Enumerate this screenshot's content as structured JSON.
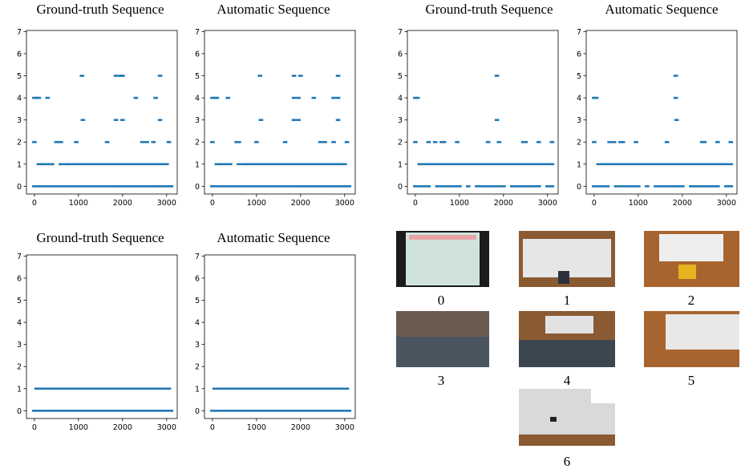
{
  "chart_data": [
    {
      "type": "scatter",
      "title": "Ground-truth Sequence",
      "color": "#1f77b4",
      "xlim": [
        -180,
        3240
      ],
      "ylim": [
        -0.35,
        7.05
      ],
      "xticks": [
        0,
        1000,
        2000,
        3000
      ],
      "yticks": [
        0,
        1,
        2,
        3,
        4,
        5,
        6,
        7
      ],
      "series": [
        {
          "y": 0,
          "x": [
            0,
            100,
            200,
            300,
            400,
            500,
            600,
            700,
            800,
            900,
            1000,
            1100,
            1200,
            1300,
            1400,
            1500,
            1600,
            1700,
            1800,
            1900,
            2000,
            2100,
            2200,
            2300,
            2400,
            2500,
            2600,
            2700,
            2800,
            2900,
            3000,
            3100
          ]
        },
        {
          "y": 1,
          "x": [
            100,
            150,
            200,
            300,
            400,
            600,
            700,
            750,
            800,
            900,
            1000,
            1100,
            1200,
            1300,
            1400,
            1500,
            1600,
            1700,
            1800,
            1900,
            2000,
            2100,
            2200,
            2300,
            2400,
            2500,
            2600,
            2700,
            2800,
            2900,
            3000
          ]
        },
        {
          "y": 2,
          "x": [
            0,
            500,
            550,
            600,
            950,
            1650,
            2450,
            2550,
            2700,
            3050
          ]
        },
        {
          "y": 3,
          "x": [
            1100,
            1850,
            2000,
            2850
          ]
        },
        {
          "y": 4,
          "x": [
            0,
            50,
            100,
            300,
            2300,
            2750
          ]
        },
        {
          "y": 5,
          "x": [
            1080,
            1850,
            1950,
            2000,
            2850
          ]
        }
      ]
    },
    {
      "type": "scatter",
      "title": "Automatic Sequence",
      "color": "#1f77b4",
      "xlim": [
        -180,
        3240
      ],
      "ylim": [
        -0.35,
        7.05
      ],
      "xticks": [
        0,
        1000,
        2000,
        3000
      ],
      "yticks": [
        0,
        1,
        2,
        3,
        4,
        5,
        6,
        7
      ],
      "series": [
        {
          "y": 0,
          "x": [
            0,
            100,
            200,
            300,
            400,
            500,
            600,
            700,
            800,
            900,
            1000,
            1100,
            1200,
            1300,
            1400,
            1500,
            1600,
            1700,
            1800,
            1900,
            2000,
            2100,
            2200,
            2300,
            2400,
            2500,
            2600,
            2700,
            2800,
            2900,
            3000,
            3100
          ]
        },
        {
          "y": 1,
          "x": [
            100,
            150,
            200,
            300,
            400,
            600,
            700,
            750,
            800,
            900,
            1000,
            1100,
            1200,
            1300,
            1400,
            1500,
            1600,
            1700,
            1800,
            1900,
            2000,
            2100,
            2200,
            2300,
            2400,
            2500,
            2600,
            2700,
            2800,
            2900,
            3000
          ]
        },
        {
          "y": 2,
          "x": [
            0,
            550,
            600,
            1000,
            1650,
            2450,
            2550,
            2750,
            3050
          ]
        },
        {
          "y": 3,
          "x": [
            1100,
            1850,
            1950,
            2850
          ]
        },
        {
          "y": 4,
          "x": [
            0,
            50,
            100,
            350,
            1850,
            1950,
            2300,
            2750,
            2850
          ]
        },
        {
          "y": 5,
          "x": [
            1080,
            1850,
            2000,
            2850
          ]
        }
      ]
    },
    {
      "type": "scatter",
      "title": "Ground-truth Sequence",
      "color": "#1f77b4",
      "xlim": [
        -180,
        3240
      ],
      "ylim": [
        -0.35,
        7.05
      ],
      "xticks": [
        0,
        1000,
        2000,
        3000
      ],
      "yticks": [
        0,
        1,
        2,
        3,
        4,
        5,
        6,
        7
      ],
      "series": [
        {
          "y": 0,
          "x": [
            0,
            100,
            200,
            300,
            500,
            600,
            700,
            800,
            900,
            1000,
            1200,
            1400,
            1500,
            1600,
            1700,
            1800,
            1900,
            2000,
            2200,
            2300,
            2400,
            2500,
            2600,
            2700,
            2800,
            3000,
            3100
          ]
        },
        {
          "y": 1,
          "x": [
            100,
            200,
            300,
            400,
            500,
            600,
            700,
            800,
            900,
            1000,
            1100,
            1200,
            1300,
            1400,
            1500,
            1600,
            1700,
            1800,
            1900,
            2000,
            2100,
            2200,
            2300,
            2400,
            2500,
            2600,
            2700,
            2800,
            2900,
            3000,
            3100
          ]
        },
        {
          "y": 2,
          "x": [
            0,
            300,
            450,
            600,
            650,
            950,
            1650,
            1900,
            2450,
            2500,
            2800,
            3100
          ]
        },
        {
          "y": 3,
          "x": [
            1850
          ]
        },
        {
          "y": 4,
          "x": [
            0,
            50
          ]
        },
        {
          "y": 5,
          "x": [
            1850
          ]
        }
      ]
    },
    {
      "type": "scatter",
      "title": "Automatic Sequence",
      "color": "#1f77b4",
      "xlim": [
        -180,
        3240
      ],
      "ylim": [
        -0.35,
        7.05
      ],
      "xticks": [
        0,
        1000,
        2000,
        3000
      ],
      "yticks": [
        0,
        1,
        2,
        3,
        4,
        5,
        6,
        7
      ],
      "series": [
        {
          "y": 0,
          "x": [
            0,
            100,
            200,
            300,
            500,
            600,
            700,
            800,
            900,
            1000,
            1200,
            1400,
            1500,
            1600,
            1700,
            1800,
            1900,
            2000,
            2200,
            2300,
            2400,
            2500,
            2600,
            2700,
            2800,
            3000,
            3100
          ]
        },
        {
          "y": 1,
          "x": [
            100,
            200,
            300,
            400,
            500,
            600,
            700,
            800,
            900,
            1000,
            1100,
            1200,
            1300,
            1400,
            1500,
            1600,
            1700,
            1800,
            1900,
            2000,
            2100,
            2200,
            2300,
            2400,
            2500,
            2600,
            2700,
            2800,
            2900,
            3000,
            3100
          ]
        },
        {
          "y": 2,
          "x": [
            0,
            350,
            450,
            600,
            650,
            950,
            1650,
            2450,
            2500,
            2800,
            3100
          ]
        },
        {
          "y": 3,
          "x": [
            1870
          ]
        },
        {
          "y": 4,
          "x": [
            0,
            50,
            1850
          ]
        },
        {
          "y": 5,
          "x": [
            1850
          ]
        }
      ]
    },
    {
      "type": "scatter",
      "title": "Ground-truth Sequence",
      "color": "#1f77b4",
      "xlim": [
        -180,
        3240
      ],
      "ylim": [
        -0.35,
        7.05
      ],
      "xticks": [
        0,
        1000,
        2000,
        3000
      ],
      "yticks": [
        0,
        1,
        2,
        3,
        4,
        5,
        6,
        7
      ],
      "series": [
        {
          "y": 0,
          "x": [
            0,
            100,
            200,
            300,
            400,
            500,
            600,
            700,
            800,
            900,
            1000,
            1100,
            1200,
            1300,
            1400,
            1500,
            1600,
            1700,
            1800,
            1900,
            2000,
            2100,
            2200,
            2300,
            2400,
            2500,
            2600,
            2700,
            2800,
            2900,
            3000,
            3100
          ]
        },
        {
          "y": 1,
          "x": [
            50,
            150,
            250,
            350,
            450,
            550,
            650,
            750,
            850,
            950,
            1050,
            1150,
            1250,
            1350,
            1450,
            1550,
            1650,
            1750,
            1850,
            1950,
            2050,
            2150,
            2250,
            2350,
            2450,
            2550,
            2650,
            2750,
            2850,
            2950,
            3050
          ]
        }
      ]
    },
    {
      "type": "scatter",
      "title": "Automatic Sequence",
      "color": "#1f77b4",
      "xlim": [
        -180,
        3240
      ],
      "ylim": [
        -0.35,
        7.05
      ],
      "xticks": [
        0,
        1000,
        2000,
        3000
      ],
      "yticks": [
        0,
        1,
        2,
        3,
        4,
        5,
        6,
        7
      ],
      "series": [
        {
          "y": 0,
          "x": [
            0,
            100,
            200,
            300,
            400,
            500,
            600,
            700,
            800,
            900,
            1000,
            1100,
            1200,
            1300,
            1400,
            1500,
            1600,
            1700,
            1800,
            1900,
            2000,
            2100,
            2200,
            2300,
            2400,
            2500,
            2600,
            2700,
            2800,
            2900,
            3000,
            3100
          ]
        },
        {
          "y": 1,
          "x": [
            50,
            150,
            250,
            350,
            450,
            550,
            650,
            750,
            850,
            950,
            1050,
            1150,
            1250,
            1350,
            1450,
            1550,
            1650,
            1750,
            1850,
            1950,
            2050,
            2150,
            2250,
            2350,
            2450,
            2550,
            2650,
            2750,
            2850,
            2950,
            3050
          ]
        }
      ]
    }
  ],
  "thumbnails": [
    "0",
    "1",
    "2",
    "3",
    "4",
    "5",
    "6"
  ]
}
